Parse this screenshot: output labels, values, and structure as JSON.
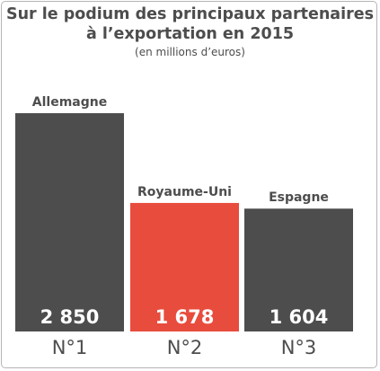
{
  "chart_data": {
    "type": "bar",
    "title_line1": "Sur le podium des principaux partenaires",
    "title_line2": "à l’exportation en 2015",
    "subtitle": "(en millions d’euros)",
    "categories": [
      "Allemagne",
      "Royaume-Uni",
      "Espagne"
    ],
    "values": [
      2850,
      1678,
      1604
    ],
    "value_labels": [
      "2 850",
      "1 678",
      "1 604"
    ],
    "rank_labels": [
      "N°1",
      "N°2",
      "N°3"
    ],
    "colors": [
      "#4d4d4d",
      "#e84c3d",
      "#4d4d4d"
    ],
    "ylim": [
      0,
      2850
    ],
    "grid": false
  }
}
